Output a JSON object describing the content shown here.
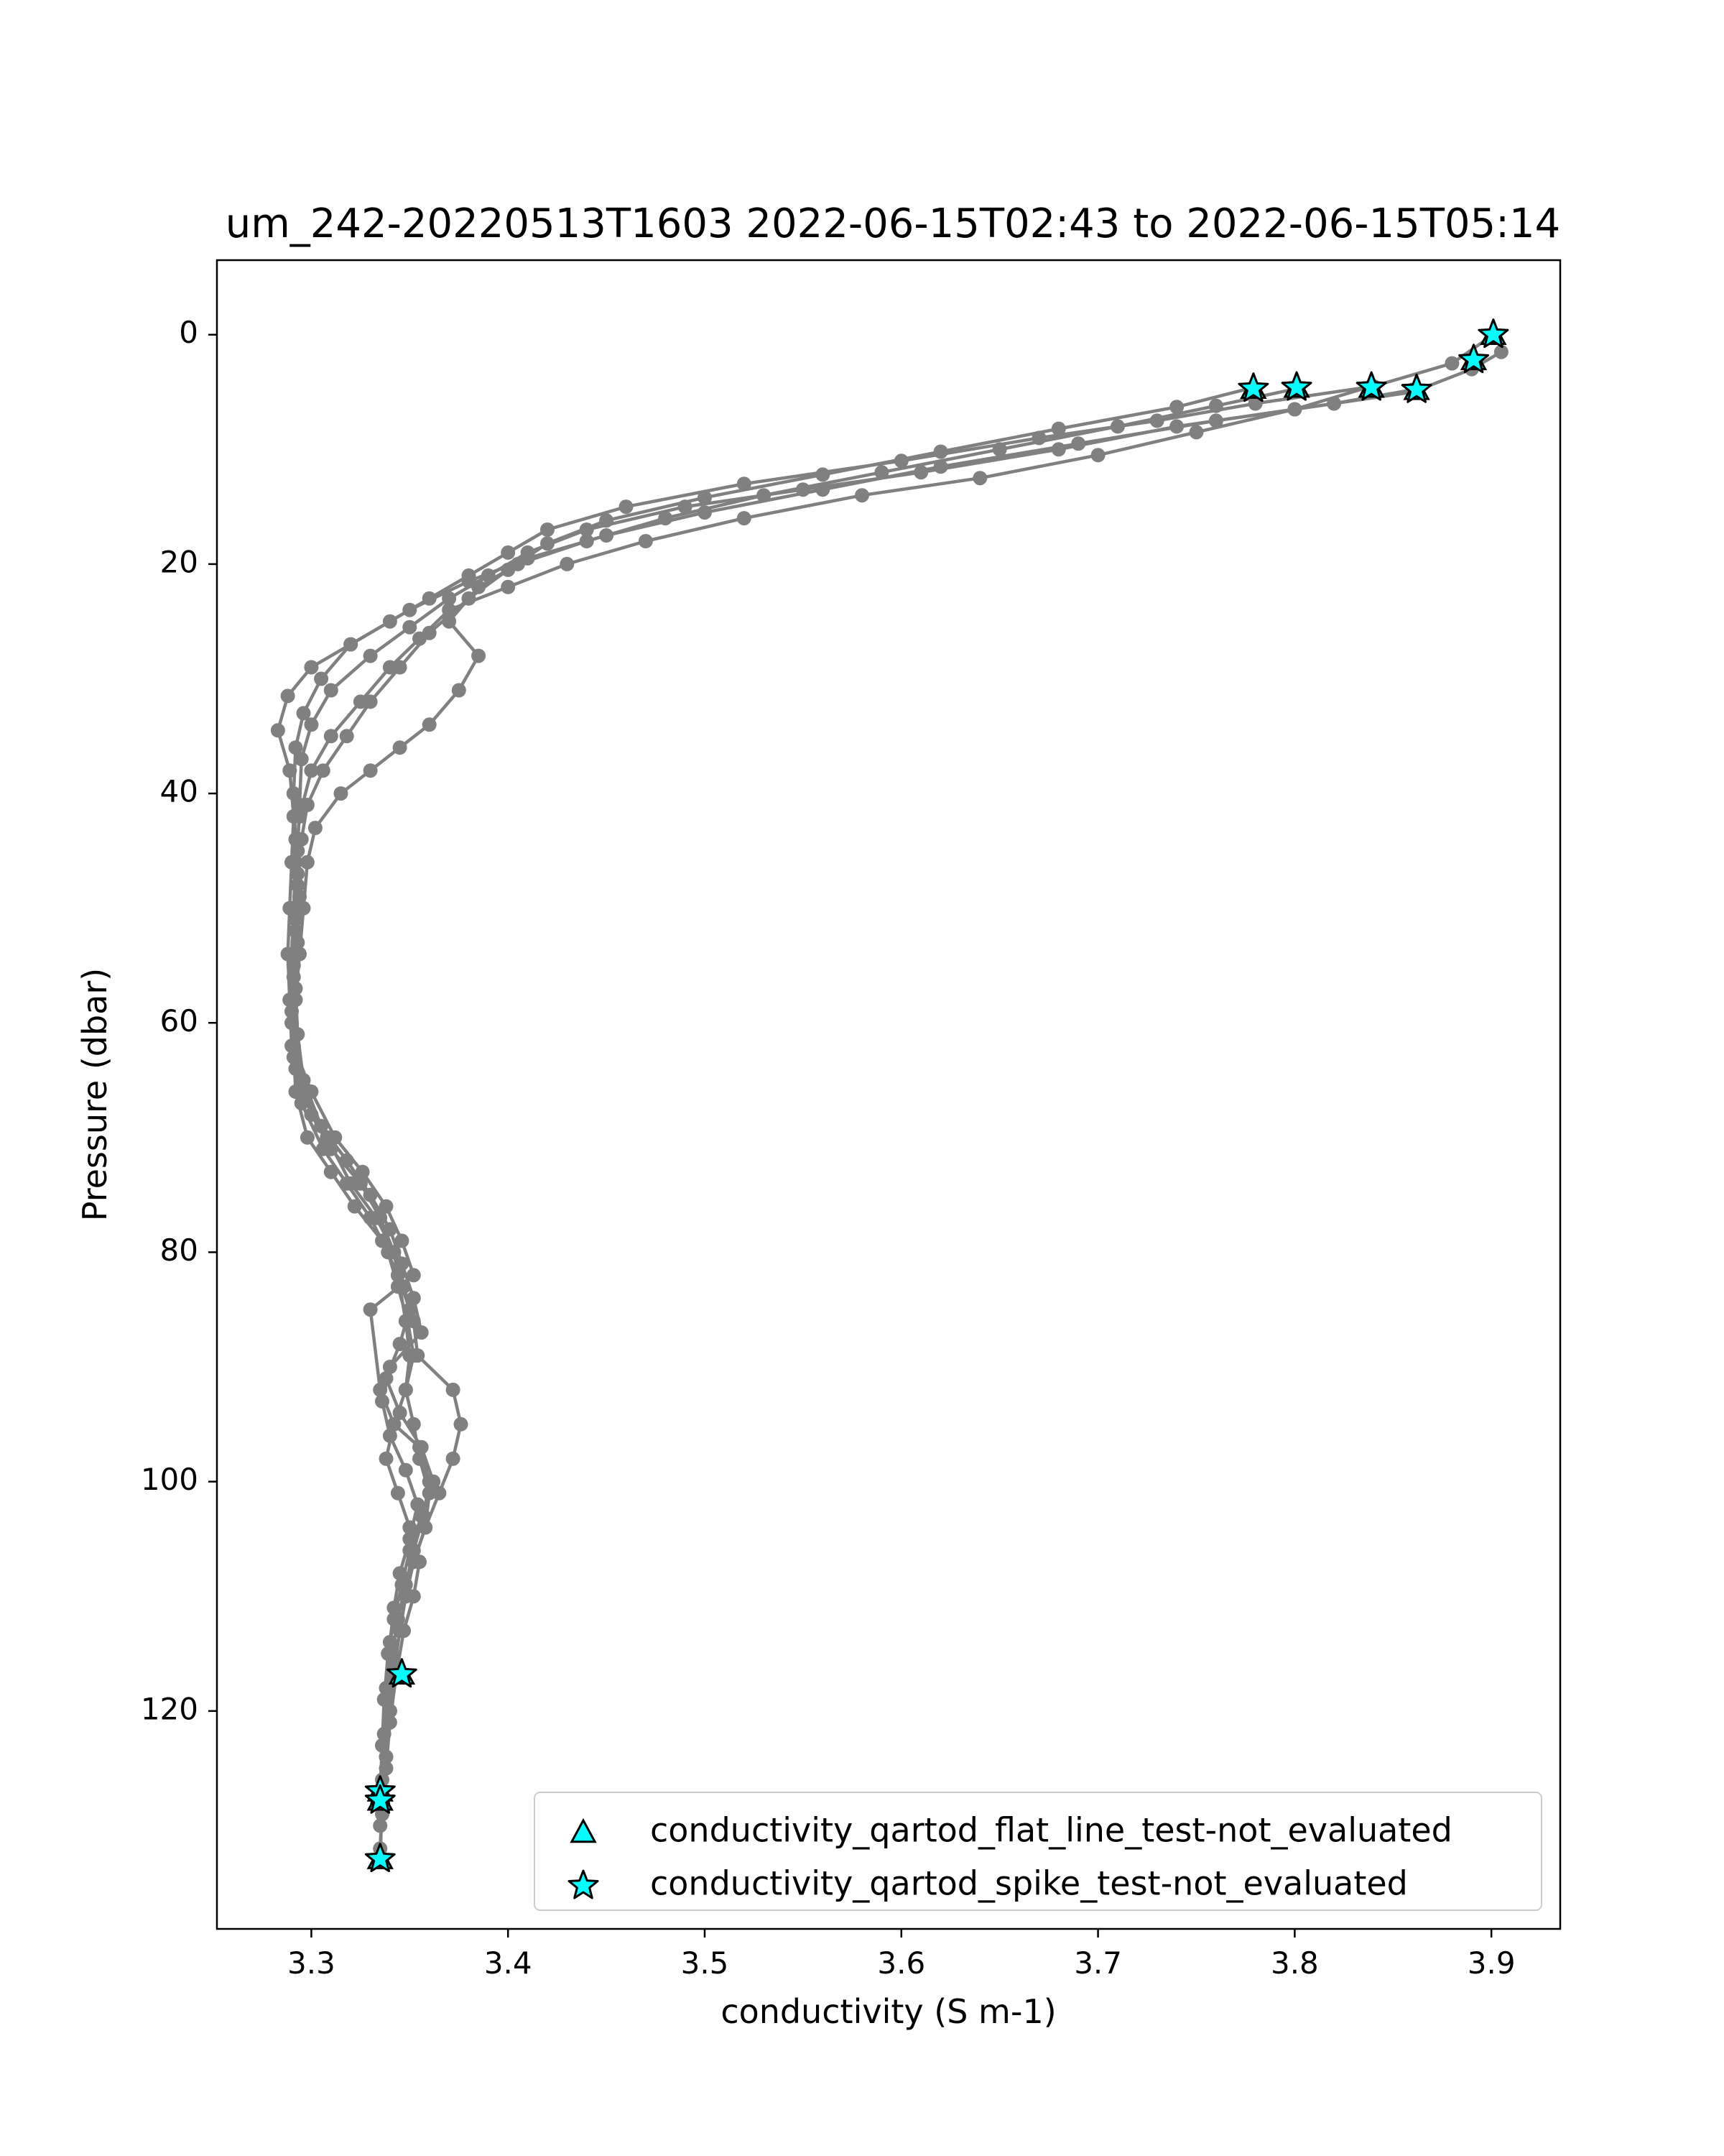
{
  "chart_data": {
    "type": "scatter",
    "title": "um_242-20220513T1603 2022-06-15T02:43 to 2022-06-15T05:14",
    "xlabel": "conductivity (S m-1)",
    "ylabel": "Pressure (dbar)",
    "xlim": [
      3.252,
      3.935
    ],
    "ylim": [
      139,
      -6.5
    ],
    "y_inverted": true,
    "xticks": [
      3.3,
      3.4,
      3.5,
      3.6,
      3.7,
      3.8,
      3.9
    ],
    "xtick_labels": [
      "3.3",
      "3.4",
      "3.5",
      "3.6",
      "3.7",
      "3.8",
      "3.9"
    ],
    "yticks": [
      0,
      20,
      40,
      60,
      80,
      100,
      120
    ],
    "ytick_labels": [
      "0",
      "20",
      "40",
      "60",
      "80",
      "100",
      "120"
    ],
    "grid": false,
    "legend_position": "lower-right",
    "colors": {
      "profile": "#808080",
      "marker_fill": "#00ffff",
      "marker_edge": "#000000"
    },
    "legend": [
      {
        "label": "conductivity_qartod_flat_line_test-not_evaluated",
        "marker": "triangle"
      },
      {
        "label": "conductivity_qartod_spike_test-not_evaluated",
        "marker": "star"
      }
    ],
    "profiles": [
      {
        "x": [
          3.901,
          3.88,
          3.84,
          3.78,
          3.73,
          3.67,
          3.6,
          3.52,
          3.46,
          3.42,
          3.4,
          3.38,
          3.36,
          3.34,
          3.32,
          3.305,
          3.296,
          3.292,
          3.291,
          3.292,
          3.293,
          3.292,
          3.291,
          3.29,
          3.292,
          3.3,
          3.31,
          3.325,
          3.335,
          3.342,
          3.345,
          3.348,
          3.35,
          3.348,
          3.352,
          3.355,
          3.36,
          3.358,
          3.352,
          3.348,
          3.345,
          3.342,
          3.34,
          3.338,
          3.336,
          3.335
        ],
        "y": [
          0,
          2.5,
          4.5,
          6,
          7.5,
          9,
          11,
          13,
          15,
          17,
          19,
          21,
          23,
          25,
          27,
          30,
          33,
          36,
          40,
          44,
          48,
          52,
          56,
          60,
          64,
          68,
          71,
          74,
          77,
          80,
          83,
          86,
          89,
          92,
          95,
          98,
          101,
          104,
          107,
          110,
          113,
          116.5,
          120,
          124,
          128,
          133
        ]
      },
      {
        "x": [
          3.905,
          3.89,
          3.86,
          3.8,
          3.74,
          3.68,
          3.61,
          3.55,
          3.49,
          3.44,
          3.41,
          3.39,
          3.37,
          3.35,
          3.33,
          3.31,
          3.3,
          3.295,
          3.294,
          3.293,
          3.294,
          3.293,
          3.292,
          3.293,
          3.296,
          3.305,
          3.318,
          3.33,
          3.34,
          3.346,
          3.352,
          3.356,
          3.34,
          3.336,
          3.34,
          3.348,
          3.354,
          3.35,
          3.345,
          3.342,
          3.34,
          3.338,
          3.337,
          3.336,
          3.335
        ],
        "y": [
          1.5,
          3,
          5,
          6.5,
          8,
          10,
          12,
          13.5,
          15,
          17,
          19,
          21,
          23,
          25.5,
          28,
          31,
          34,
          37,
          41,
          45,
          49,
          53,
          57,
          61,
          65,
          69,
          72,
          75,
          78,
          81,
          84,
          87,
          90,
          93,
          96,
          99,
          102,
          105,
          108,
          111,
          114,
          118,
          122,
          126,
          130
        ]
      },
      {
        "x": [
          3.86,
          3.82,
          3.76,
          3.69,
          3.62,
          3.56,
          3.5,
          3.45,
          3.41,
          3.38,
          3.35,
          3.32,
          3.3,
          3.288,
          3.283,
          3.289,
          3.291,
          3.29,
          3.289,
          3.288,
          3.289,
          3.291,
          3.3,
          3.312,
          3.326,
          3.338,
          3.346,
          3.352,
          3.33,
          3.335,
          3.342,
          3.355,
          3.36,
          3.357,
          3.352,
          3.348,
          3.344,
          3.341,
          3.338,
          3.336,
          3.335
        ],
        "y": [
          4.8,
          6,
          7.5,
          9.5,
          11.5,
          13.5,
          15.5,
          17.5,
          19.5,
          21.5,
          24,
          27,
          29,
          31.5,
          34.5,
          38,
          42,
          46,
          50,
          54,
          58,
          62,
          66,
          70,
          73,
          76,
          79,
          82,
          85,
          92,
          95,
          97,
          100,
          103,
          106,
          109,
          112,
          115,
          119,
          123,
          127
        ]
      },
      {
        "x": [
          3.839,
          3.8,
          3.75,
          3.7,
          3.64,
          3.58,
          3.52,
          3.47,
          3.43,
          3.4,
          3.37,
          3.355,
          3.34,
          3.325,
          3.31,
          3.3,
          3.294,
          3.292,
          3.291,
          3.29,
          3.289,
          3.29,
          3.296,
          3.308,
          3.32,
          3.333,
          3.342,
          3.347,
          3.352,
          3.354,
          3.372,
          3.376,
          3.372,
          3.365,
          3.358,
          3.352,
          3.348,
          3.345,
          3.342,
          3.34,
          3.338,
          3.336,
          3.335
        ],
        "y": [
          4.5,
          6.5,
          8.5,
          10.5,
          12.5,
          14,
          16,
          18,
          20,
          22,
          24,
          26.5,
          29,
          32,
          35,
          38,
          42,
          46,
          50,
          54,
          58,
          62,
          66,
          70,
          74,
          77,
          80,
          83,
          86,
          89,
          92,
          95,
          98,
          101,
          104,
          107,
          110,
          113,
          116,
          120,
          124,
          128,
          132
        ]
      },
      {
        "x": [
          3.801,
          3.76,
          3.71,
          3.65,
          3.59,
          3.53,
          3.48,
          3.44,
          3.405,
          3.385,
          3.37,
          3.385,
          3.375,
          3.36,
          3.345,
          3.33,
          3.315,
          3.302,
          3.298,
          3.296,
          3.294,
          3.292,
          3.291,
          3.292,
          3.298,
          3.31,
          3.322,
          3.336,
          3.344,
          3.35,
          3.345,
          3.338,
          3.345,
          3.356,
          3.362,
          3.356,
          3.35,
          3.346,
          3.342,
          3.339,
          3.337,
          3.336
        ],
        "y": [
          4.7,
          6.2,
          8,
          10,
          12,
          14,
          16,
          18,
          20,
          22,
          25,
          28,
          31,
          34,
          36,
          38,
          40,
          43,
          46,
          50,
          54,
          58,
          62,
          66,
          70,
          73,
          76,
          79,
          82,
          85,
          88,
          91,
          94,
          97,
          100,
          103,
          106,
          109,
          112,
          115,
          119,
          123
        ]
      },
      {
        "x": [
          3.779,
          3.74,
          3.68,
          3.62,
          3.56,
          3.5,
          3.45,
          3.42,
          3.4,
          3.38,
          3.36,
          3.345,
          3.33,
          3.318,
          3.306,
          3.298,
          3.295,
          3.293,
          3.292,
          3.291,
          3.29,
          3.291,
          3.295,
          3.306,
          3.318,
          3.33,
          3.339,
          3.344,
          3.349,
          3.352,
          3.348,
          3.342,
          3.338,
          3.344,
          3.35,
          3.355,
          3.352,
          3.347,
          3.343,
          3.34,
          3.338,
          3.336
        ],
        "y": [
          4.6,
          6.3,
          8.2,
          10.2,
          12.2,
          14.2,
          16.2,
          18.2,
          20.5,
          23,
          26,
          29,
          32,
          35,
          38,
          41,
          44,
          47,
          51,
          55,
          59,
          63,
          67,
          71,
          74,
          77,
          80,
          83,
          86,
          89,
          92,
          95,
          98,
          101,
          104,
          107,
          110,
          113,
          117,
          121,
          125,
          129
        ]
      }
    ],
    "flagged_points": [
      {
        "x": 3.901,
        "y": 0.0
      },
      {
        "x": 3.891,
        "y": 2.2
      },
      {
        "x": 3.862,
        "y": 4.8
      },
      {
        "x": 3.839,
        "y": 4.6
      },
      {
        "x": 3.801,
        "y": 4.6
      },
      {
        "x": 3.779,
        "y": 4.7
      },
      {
        "x": 3.346,
        "y": 116.8
      },
      {
        "x": 3.335,
        "y": 127.0
      },
      {
        "x": 3.335,
        "y": 127.8
      },
      {
        "x": 3.335,
        "y": 132.9
      }
    ]
  }
}
